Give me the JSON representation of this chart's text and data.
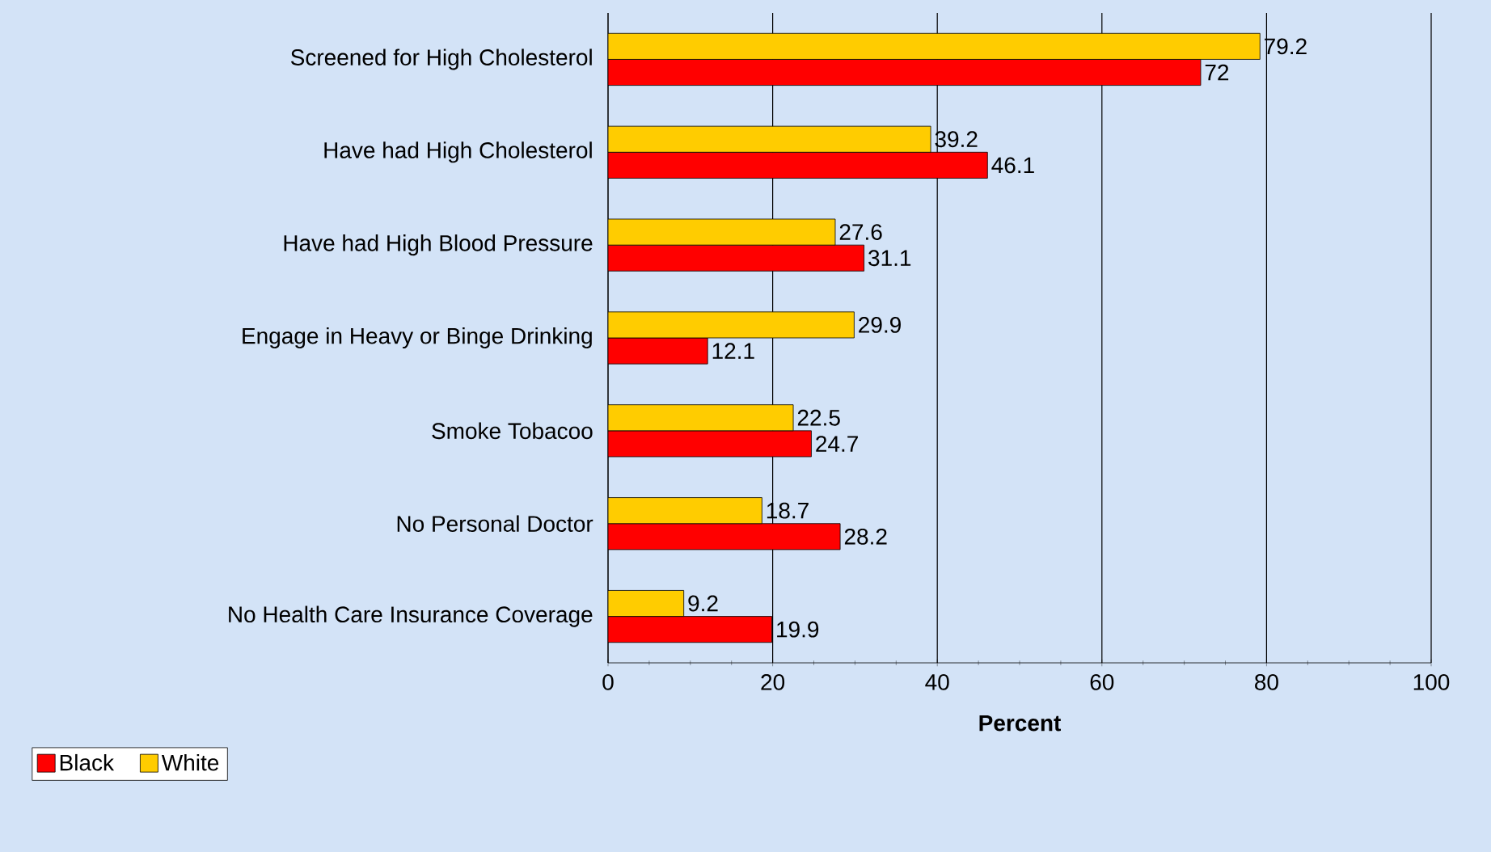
{
  "chart_data": {
    "type": "bar",
    "orientation": "horizontal",
    "xlabel": "Percent",
    "categories": [
      "Screened for High Cholesterol",
      "Have had High Cholesterol",
      "Have had High Blood Pressure",
      "Engage in Heavy or Binge Drinking",
      "Smoke Tobacoo",
      "No Personal Doctor",
      "No Health Care Insurance Coverage"
    ],
    "series": [
      {
        "name": "Black",
        "color": "#ff0000",
        "values": [
          72,
          46.1,
          31.1,
          12.1,
          24.7,
          28.2,
          19.9
        ]
      },
      {
        "name": "White",
        "color": "#ffcc00",
        "values": [
          79.2,
          39.2,
          27.6,
          29.9,
          22.5,
          18.7,
          9.2
        ]
      }
    ],
    "xlim": [
      0,
      100
    ],
    "xticks": [
      0,
      20,
      40,
      60,
      80,
      100
    ],
    "grid": "x",
    "legend": "bottom left",
    "data_labels": true
  }
}
